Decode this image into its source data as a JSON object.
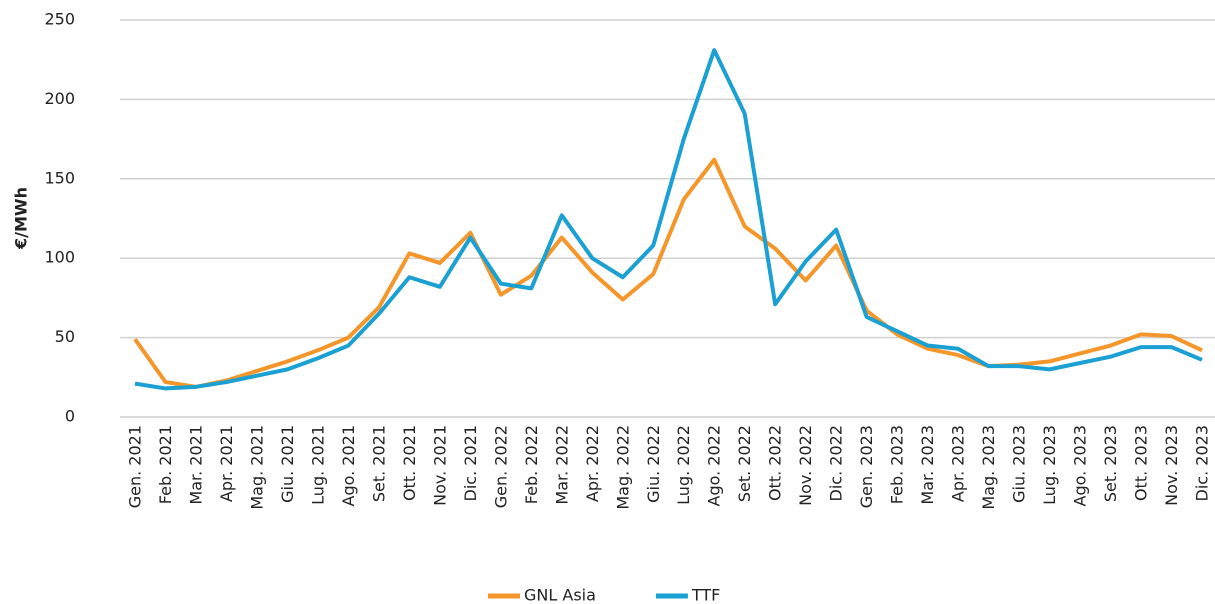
{
  "chart_data": {
    "type": "line",
    "y_label": "€/MWh",
    "categories": [
      "Gen. 2021",
      "Feb. 2021",
      "Mar. 2021",
      "Apr. 2021",
      "Mag. 2021",
      "Giu. 2021",
      "Lug. 2021",
      "Ago. 2021",
      "Set. 2021",
      "Ott. 2021",
      "Nov. 2021",
      "Dic. 2021",
      "Gen. 2022",
      "Feb. 2022",
      "Mar. 2022",
      "Apr. 2022",
      "Mag. 2022",
      "Giu. 2022",
      "Lug. 2022",
      "Ago. 2022",
      "Set. 2022",
      "Ott. 2022",
      "Nov. 2022",
      "Dic. 2022",
      "Gen. 2023",
      "Feb. 2023",
      "Mar. 2023",
      "Apr. 2023",
      "Mag. 2023",
      "Giu. 2023",
      "Lug. 2023",
      "Ago. 2023",
      "Set. 2023",
      "Ott. 2023",
      "Nov. 2023",
      "Dic. 2023"
    ],
    "series": [
      {
        "name": "GNL Asia",
        "color": "#f5962a",
        "values": [
          49,
          22,
          19,
          23,
          29,
          35,
          42,
          50,
          69,
          103,
          97,
          116,
          77,
          89,
          113,
          91,
          74,
          90,
          137,
          162,
          120,
          106,
          86,
          108,
          67,
          52,
          43,
          39,
          32,
          33,
          35,
          40,
          45,
          52,
          51,
          42
        ]
      },
      {
        "name": "TTF",
        "color": "#1aa0d2",
        "values": [
          21,
          18,
          19,
          22,
          26,
          30,
          37,
          45,
          65,
          88,
          82,
          113,
          84,
          81,
          127,
          100,
          88,
          108,
          175,
          231,
          191,
          71,
          98,
          118,
          63,
          54,
          45,
          43,
          32,
          32,
          30,
          34,
          38,
          44,
          44,
          36
        ]
      }
    ],
    "ylim": [
      0,
      250
    ],
    "yticks": [
      0,
      50,
      100,
      150,
      200,
      250
    ],
    "grid": true,
    "legend": "bottom"
  }
}
